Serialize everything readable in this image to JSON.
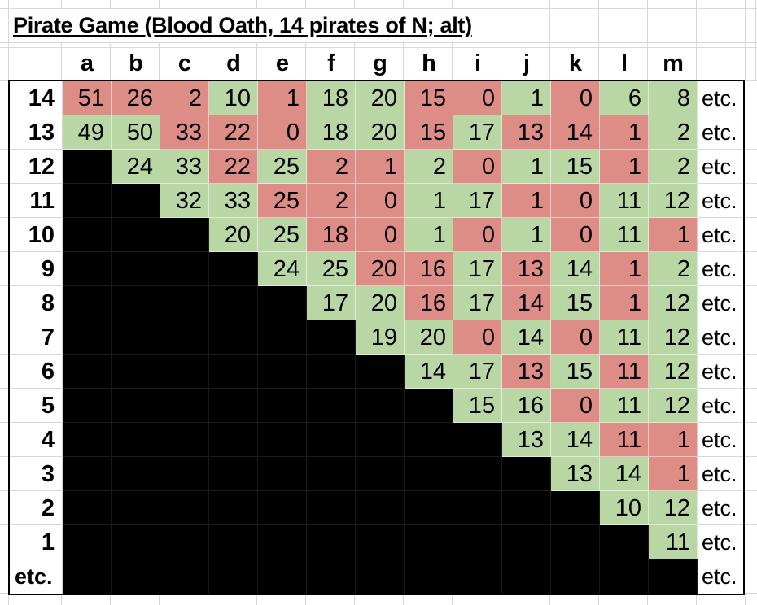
{
  "title": "Pirate Game (Blood Oath, 14 pirates of N; alt)",
  "column_headers": [
    "a",
    "b",
    "c",
    "d",
    "e",
    "f",
    "g",
    "h",
    "i",
    "j",
    "k",
    "l",
    "m"
  ],
  "etc_column_label": "etc.",
  "colors": {
    "green": "#b9d6a5",
    "red": "#dd8c86",
    "black": "#000000",
    "gridline": "#d8d8d8"
  },
  "rows": [
    {
      "label": "14",
      "values": [
        "51",
        "26",
        "2",
        "10",
        "1",
        "18",
        "20",
        "15",
        "0",
        "1",
        "0",
        "6",
        "8"
      ],
      "fills": "rrrgrggrrgrgg",
      "etc": "etc."
    },
    {
      "label": "13",
      "values": [
        "49",
        "50",
        "33",
        "22",
        "0",
        "18",
        "20",
        "15",
        "17",
        "13",
        "14",
        "1",
        "2"
      ],
      "fills": "ggrrrggrgrrrg",
      "etc": "etc."
    },
    {
      "label": "12",
      "values": [
        "",
        "24",
        "33",
        "22",
        "25",
        "2",
        "1",
        "2",
        "0",
        "1",
        "15",
        "1",
        "2"
      ],
      "fills": "kggrgrrgrggrg",
      "etc": "etc."
    },
    {
      "label": "11",
      "values": [
        "",
        "",
        "32",
        "33",
        "25",
        "2",
        "0",
        "1",
        "17",
        "1",
        "0",
        "11",
        "12"
      ],
      "fills": "kkggrrrggrrgg",
      "etc": "etc."
    },
    {
      "label": "10",
      "values": [
        "",
        "",
        "",
        "20",
        "25",
        "18",
        "0",
        "1",
        "0",
        "1",
        "0",
        "11",
        "1"
      ],
      "fills": "kkkggrrgrgrgr",
      "etc": "etc."
    },
    {
      "label": "9",
      "values": [
        "",
        "",
        "",
        "",
        "24",
        "25",
        "20",
        "16",
        "17",
        "13",
        "14",
        "1",
        "2"
      ],
      "fills": "kkkkggrrgrgrg",
      "etc": "etc."
    },
    {
      "label": "8",
      "values": [
        "",
        "",
        "",
        "",
        "",
        "17",
        "20",
        "16",
        "17",
        "14",
        "15",
        "1",
        "12"
      ],
      "fills": "kkkkkggrgrgrg",
      "etc": "etc."
    },
    {
      "label": "7",
      "values": [
        "",
        "",
        "",
        "",
        "",
        "",
        "19",
        "20",
        "0",
        "14",
        "0",
        "11",
        "12"
      ],
      "fills": "kkkkkkggrgrgg",
      "etc": "etc."
    },
    {
      "label": "6",
      "values": [
        "",
        "",
        "",
        "",
        "",
        "",
        "",
        "14",
        "17",
        "13",
        "15",
        "11",
        "12"
      ],
      "fills": "kkkkkkkggrgrg",
      "etc": "etc."
    },
    {
      "label": "5",
      "values": [
        "",
        "",
        "",
        "",
        "",
        "",
        "",
        "",
        "15",
        "16",
        "0",
        "11",
        "12"
      ],
      "fills": "kkkkkkkkggrgg",
      "etc": "etc."
    },
    {
      "label": "4",
      "values": [
        "",
        "",
        "",
        "",
        "",
        "",
        "",
        "",
        "",
        "13",
        "14",
        "11",
        "1"
      ],
      "fills": "kkkkkkkkkggrr",
      "etc": "etc."
    },
    {
      "label": "3",
      "values": [
        "",
        "",
        "",
        "",
        "",
        "",
        "",
        "",
        "",
        "",
        "13",
        "14",
        "1"
      ],
      "fills": "kkkkkkkkkkggr",
      "etc": "etc."
    },
    {
      "label": "2",
      "values": [
        "",
        "",
        "",
        "",
        "",
        "",
        "",
        "",
        "",
        "",
        "",
        "10",
        "12"
      ],
      "fills": "kkkkkkkkkkkgg",
      "etc": "etc."
    },
    {
      "label": "1",
      "values": [
        "",
        "",
        "",
        "",
        "",
        "",
        "",
        "",
        "",
        "",
        "",
        "",
        "11"
      ],
      "fills": "kkkkkkkkkkkkg",
      "etc": "etc."
    },
    {
      "label": "etc.",
      "values": [
        "",
        "",
        "",
        "",
        "",
        "",
        "",
        "",
        "",
        "",
        "",
        "",
        ""
      ],
      "fills": "kkkkkkkkkkkkk",
      "etc": "etc."
    }
  ]
}
